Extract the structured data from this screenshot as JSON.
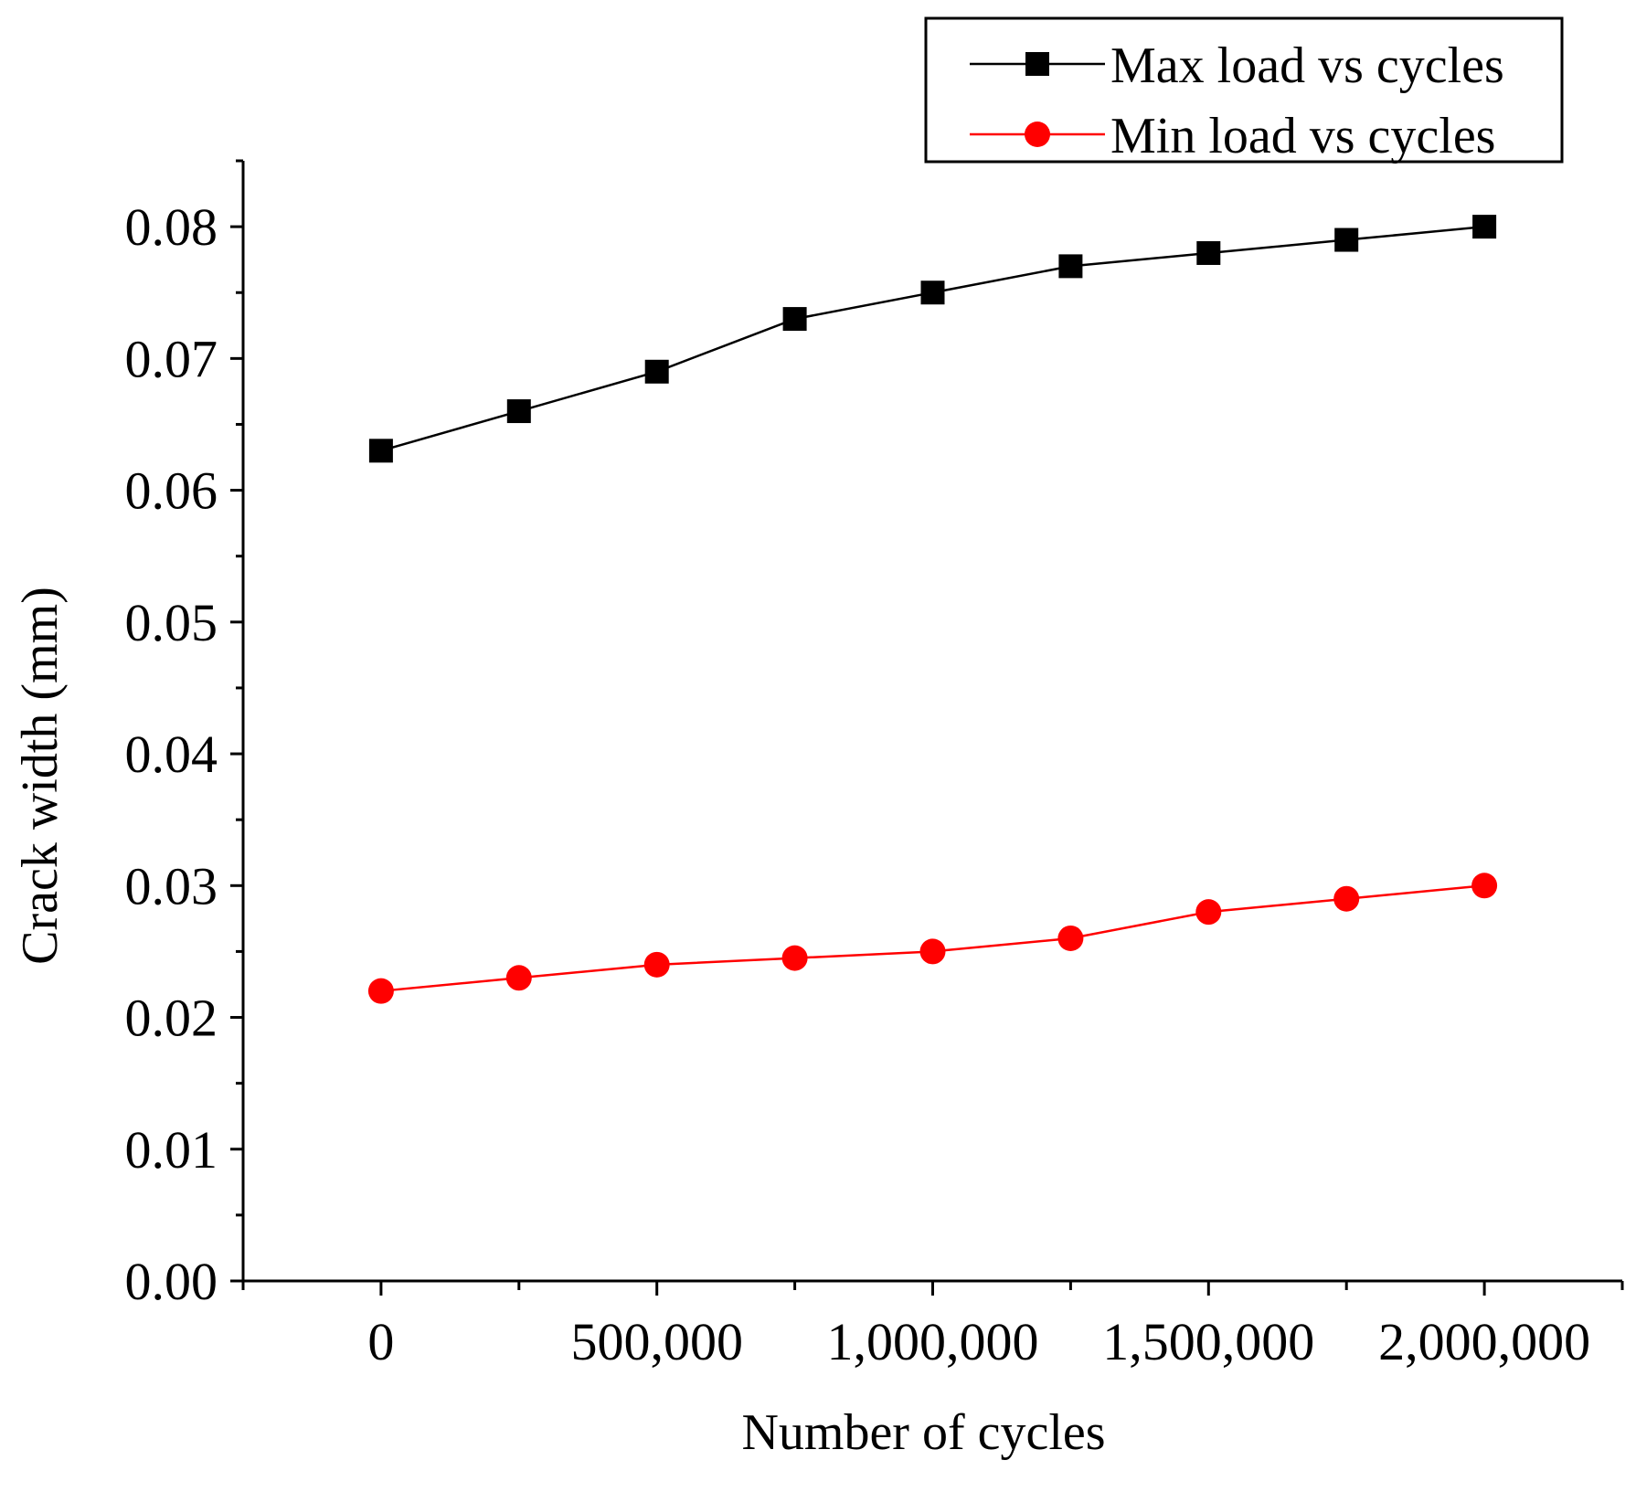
{
  "chart_data": {
    "type": "line",
    "title": "",
    "xlabel": "Number of cycles",
    "ylabel": "Crack width (mm)",
    "x": [
      0,
      250000,
      500000,
      750000,
      1000000,
      1250000,
      1500000,
      1750000,
      2000000
    ],
    "xlim": [
      -250000,
      2250000
    ],
    "ylim": [
      0,
      0.085
    ],
    "x_ticks": [
      {
        "value": 0,
        "label": "0"
      },
      {
        "value": 500000,
        "label": "500,000"
      },
      {
        "value": 1000000,
        "label": "1,000,000"
      },
      {
        "value": 1500000,
        "label": "1,500,000"
      },
      {
        "value": 2000000,
        "label": "2,000,000"
      }
    ],
    "y_ticks": [
      {
        "value": 0,
        "label": "0.00"
      },
      {
        "value": 0.01,
        "label": "0.01"
      },
      {
        "value": 0.02,
        "label": "0.02"
      },
      {
        "value": 0.03,
        "label": "0.03"
      },
      {
        "value": 0.04,
        "label": "0.04"
      },
      {
        "value": 0.05,
        "label": "0.05"
      },
      {
        "value": 0.06,
        "label": "0.06"
      },
      {
        "value": 0.07,
        "label": "0.07"
      },
      {
        "value": 0.08,
        "label": "0.08"
      }
    ],
    "grid": false,
    "legend_position": "top-right",
    "series": [
      {
        "name": "Max load vs cycles",
        "marker": "square",
        "color": "#000000",
        "values": [
          0.063,
          0.066,
          0.069,
          0.073,
          0.075,
          0.077,
          0.078,
          0.079,
          0.08
        ]
      },
      {
        "name": "Min load vs cycles",
        "marker": "circle",
        "color": "#ff0000",
        "values": [
          0.022,
          0.023,
          0.024,
          0.0245,
          0.025,
          0.026,
          0.028,
          0.029,
          0.03
        ]
      }
    ]
  }
}
